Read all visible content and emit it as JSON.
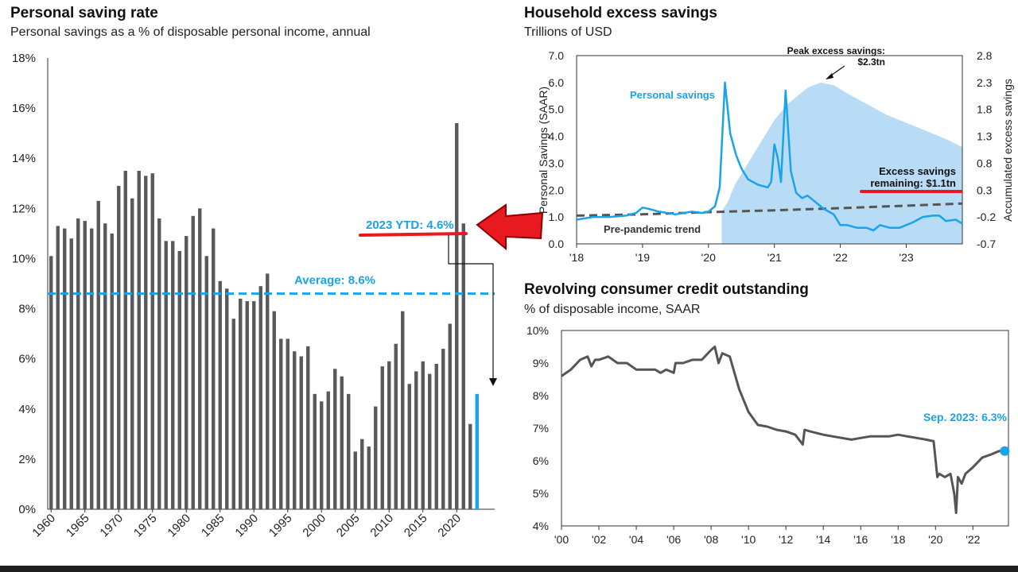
{
  "colors": {
    "bar": "#595959",
    "highlight": "#1aa3e8",
    "red": "#e8191f",
    "dark_line": "#555555",
    "excess_area": "#b8dcf5"
  },
  "left_panel": {
    "title": "Personal saving rate",
    "subtitle": "Personal savings as a % of disposable personal income, annual"
  },
  "tr_panel": {
    "title": "Household excess savings",
    "subtitle": "Trillions of USD"
  },
  "br_panel": {
    "title": "Revolving consumer credit outstanding",
    "subtitle": "% of disposable income, SAAR"
  },
  "chart_data": [
    {
      "type": "bar",
      "title": "Personal saving rate",
      "subtitle": "Personal savings as a % of disposable personal income, annual",
      "ylim": [
        0,
        18
      ],
      "y_ticks": [
        "0%",
        "2%",
        "4%",
        "6%",
        "8%",
        "10%",
        "12%",
        "14%",
        "16%",
        "18%"
      ],
      "x_ticks": [
        "1960",
        "1965",
        "1970",
        "1975",
        "1980",
        "1985",
        "1990",
        "1995",
        "2000",
        "2005",
        "2010",
        "2015",
        "2020"
      ],
      "categories": [
        1960,
        1961,
        1962,
        1963,
        1964,
        1965,
        1966,
        1967,
        1968,
        1969,
        1970,
        1971,
        1972,
        1973,
        1974,
        1975,
        1976,
        1977,
        1978,
        1979,
        1980,
        1981,
        1982,
        1983,
        1984,
        1985,
        1986,
        1987,
        1988,
        1989,
        1990,
        1991,
        1992,
        1993,
        1994,
        1995,
        1996,
        1997,
        1998,
        1999,
        2000,
        2001,
        2002,
        2003,
        2004,
        2005,
        2006,
        2007,
        2008,
        2009,
        2010,
        2011,
        2012,
        2013,
        2014,
        2015,
        2016,
        2017,
        2018,
        2019,
        2020,
        2021,
        2022,
        2023
      ],
      "values": [
        10.1,
        11.3,
        11.2,
        10.8,
        11.6,
        11.5,
        11.2,
        12.3,
        11.4,
        11.0,
        12.9,
        13.5,
        12.4,
        13.5,
        13.3,
        13.4,
        11.6,
        10.7,
        10.7,
        10.3,
        10.9,
        11.7,
        12.0,
        10.1,
        11.2,
        9.1,
        8.8,
        7.6,
        8.4,
        8.3,
        8.3,
        8.9,
        9.4,
        7.9,
        6.8,
        6.8,
        6.3,
        6.1,
        6.5,
        4.6,
        4.3,
        4.7,
        5.6,
        5.3,
        4.6,
        2.3,
        2.8,
        2.5,
        4.1,
        5.7,
        5.9,
        6.6,
        7.9,
        5.0,
        5.5,
        5.9,
        5.4,
        5.8,
        6.4,
        7.4,
        15.4,
        11.4,
        3.4,
        4.6
      ],
      "highlight_category": 2023,
      "average": 8.6,
      "average_label": "Average: 8.6%",
      "annotation": "2023 YTD: 4.6%"
    },
    {
      "type": "line",
      "title": "Household excess savings",
      "subtitle": "Trillions of USD",
      "ylabel": "Personal Savings (SAAR)",
      "y2label": "Accumulated excess savings",
      "ylim": [
        0,
        7
      ],
      "y2lim": [
        -0.7,
        2.8
      ],
      "y_ticks": [
        "0.0",
        "1.0",
        "2.0",
        "3.0",
        "4.0",
        "5.0",
        "6.0",
        "7.0"
      ],
      "y2_ticks": [
        "-0.7",
        "-0.2",
        "0.3",
        "0.8",
        "1.3",
        "1.8",
        "2.3",
        "2.8"
      ],
      "x_ticks": [
        "'18",
        "'19",
        "'20",
        "'21",
        "'22",
        "'23"
      ],
      "xlim": [
        2018.0,
        2023.85
      ],
      "series": [
        {
          "name": "Personal savings",
          "x": [
            2018.0,
            2018.25,
            2018.5,
            2018.75,
            2018.9,
            2019.0,
            2019.1,
            2019.25,
            2019.5,
            2019.75,
            2019.9,
            2020.0,
            2020.1,
            2020.17,
            2020.25,
            2020.33,
            2020.42,
            2020.5,
            2020.6,
            2020.75,
            2020.9,
            2020.95,
            2021.0,
            2021.05,
            2021.1,
            2021.17,
            2021.25,
            2021.33,
            2021.42,
            2021.5,
            2021.6,
            2021.75,
            2021.9,
            2022.0,
            2022.1,
            2022.25,
            2022.4,
            2022.5,
            2022.6,
            2022.75,
            2022.9,
            2023.0,
            2023.1,
            2023.25,
            2023.4,
            2023.5,
            2023.6,
            2023.75,
            2023.85
          ],
          "values": [
            0.9,
            1.0,
            1.0,
            1.05,
            1.15,
            1.35,
            1.3,
            1.2,
            1.1,
            1.2,
            1.15,
            1.2,
            1.4,
            2.1,
            6.0,
            4.1,
            3.3,
            2.8,
            2.4,
            2.2,
            2.1,
            2.3,
            3.7,
            3.2,
            2.3,
            5.7,
            2.7,
            1.9,
            1.7,
            1.8,
            1.6,
            1.3,
            1.1,
            0.7,
            0.7,
            0.6,
            0.6,
            0.5,
            0.7,
            0.6,
            0.6,
            0.7,
            0.8,
            1.0,
            1.05,
            1.05,
            0.85,
            0.9,
            0.75
          ]
        },
        {
          "name": "Pre-pandemic trend",
          "x": [
            2018.0,
            2019.0,
            2020.0,
            2021.0,
            2022.0,
            2023.0,
            2023.85
          ],
          "values": [
            1.05,
            1.1,
            1.18,
            1.25,
            1.33,
            1.42,
            1.5
          ]
        },
        {
          "name": "Accumulated excess savings",
          "axis": "y2",
          "x": [
            2020.2,
            2020.3,
            2020.4,
            2020.6,
            2020.8,
            2021.0,
            2021.2,
            2021.5,
            2021.7,
            2021.9,
            2022.1,
            2022.4,
            2022.7,
            2023.0,
            2023.3,
            2023.6,
            2023.85
          ],
          "values": [
            -0.1,
            0.1,
            0.4,
            0.8,
            1.2,
            1.6,
            1.9,
            2.2,
            2.3,
            2.25,
            2.1,
            1.9,
            1.7,
            1.55,
            1.4,
            1.25,
            1.1
          ]
        }
      ],
      "annotations": {
        "peak_line1": "Peak excess savings:",
        "peak_line2": "$2.3tn",
        "remaining_line1": "Excess savings",
        "remaining_line2": "remaining: $1.1tn",
        "personal_savings": "Personal savings",
        "pre_pandemic": "Pre-pandemic trend"
      }
    },
    {
      "type": "line",
      "title": "Revolving consumer credit outstanding",
      "subtitle": "% of disposable income, SAAR",
      "ylim": [
        4,
        10
      ],
      "y_ticks": [
        "4%",
        "5%",
        "6%",
        "7%",
        "8%",
        "9%",
        "10%"
      ],
      "x_ticks": [
        "'00",
        "'02",
        "'04",
        "'06",
        "'08",
        "'10",
        "'12",
        "'14",
        "'16",
        "'18",
        "'20",
        "'22"
      ],
      "xlim": [
        2000,
        2023.9
      ],
      "series": [
        {
          "name": "Revolving consumer credit",
          "x": [
            2000.0,
            2000.5,
            2001.0,
            2001.4,
            2001.6,
            2001.8,
            2002.0,
            2002.5,
            2003.0,
            2003.5,
            2004.0,
            2004.5,
            2005.0,
            2005.3,
            2005.6,
            2006.0,
            2006.1,
            2006.5,
            2007.0,
            2007.5,
            2008.0,
            2008.2,
            2008.4,
            2008.6,
            2009.0,
            2009.2,
            2009.5,
            2010.0,
            2010.5,
            2011.0,
            2011.5,
            2012.0,
            2012.5,
            2012.9,
            2013.0,
            2013.3,
            2014.0,
            2014.5,
            2015.0,
            2015.5,
            2016.0,
            2016.5,
            2017.0,
            2017.5,
            2018.0,
            2018.5,
            2019.0,
            2019.5,
            2019.9,
            2020.1,
            2020.2,
            2020.5,
            2020.8,
            2021.0,
            2021.1,
            2021.2,
            2021.4,
            2021.6,
            2022.0,
            2022.5,
            2023.0,
            2023.4,
            2023.7
          ],
          "values": [
            8.6,
            8.8,
            9.1,
            9.2,
            8.9,
            9.1,
            9.1,
            9.2,
            9.0,
            9.0,
            8.8,
            8.8,
            8.8,
            8.7,
            8.8,
            8.7,
            9.0,
            9.0,
            9.1,
            9.1,
            9.4,
            9.5,
            9.0,
            9.3,
            9.2,
            8.8,
            8.2,
            7.5,
            7.1,
            7.05,
            6.95,
            6.9,
            6.8,
            6.5,
            6.95,
            6.9,
            6.8,
            6.75,
            6.7,
            6.65,
            6.7,
            6.75,
            6.75,
            6.75,
            6.8,
            6.75,
            6.7,
            6.65,
            6.6,
            5.5,
            5.6,
            5.5,
            5.6,
            5.0,
            4.4,
            5.5,
            5.3,
            5.6,
            5.8,
            6.1,
            6.2,
            6.3,
            6.3
          ]
        }
      ],
      "annotation": "Sep. 2023: 6.3%"
    }
  ]
}
